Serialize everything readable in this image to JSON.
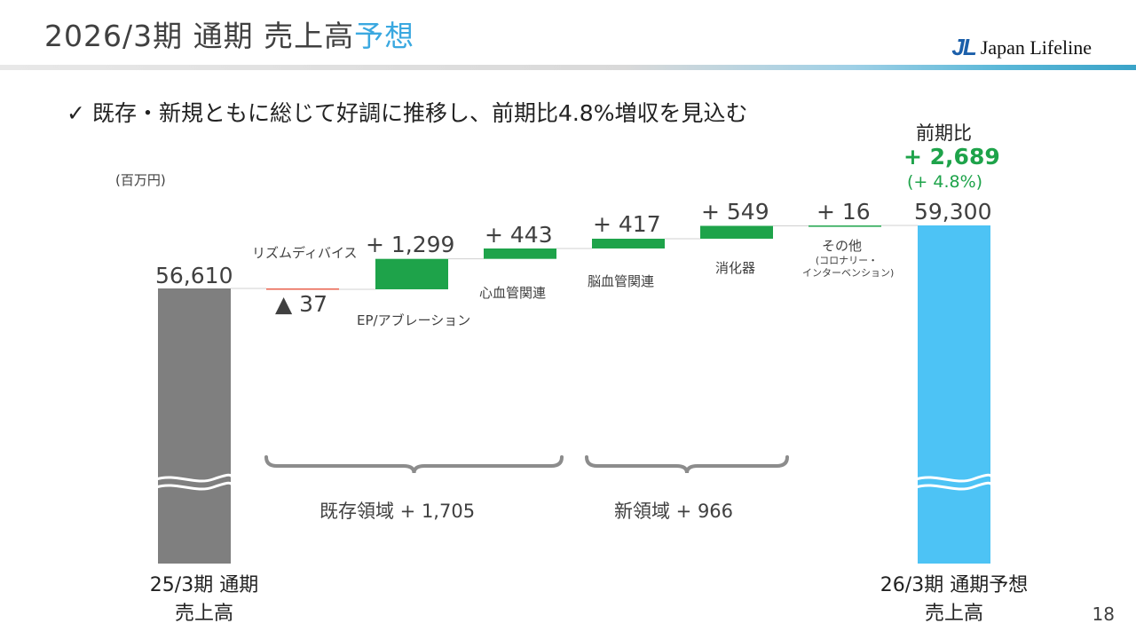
{
  "header": {
    "title_main": "2026/3期 通期 売上高",
    "title_accent": "予想",
    "logo_mark": "JL",
    "logo_text": "Japan Lifeline"
  },
  "headline": {
    "check": "✓",
    "text": "既存・新規ともに総じて好調に推移し、前期比4.8%増収を見込む"
  },
  "unit_label": "(百万円)",
  "yoy": {
    "heading": "前期比",
    "value": "+ 2,689",
    "pct": "(+ 4.8%)"
  },
  "chart_data": {
    "type": "bar",
    "subtype": "waterfall",
    "unit": "百万円",
    "start": {
      "value": 56610,
      "value_label": "56,610",
      "label_line1": "25/3期 通期",
      "label_line2": "売上高",
      "color": "#7f7f7f"
    },
    "end": {
      "value": 59300,
      "value_label": "59,300",
      "label_line1": "26/3期 通期予想",
      "label_line2": "売上高",
      "color": "#4dc3f5"
    },
    "steps": [
      {
        "category": "リズムディバイス",
        "value": -37,
        "display": "▲ 37",
        "color": "#e8604c"
      },
      {
        "category": "EP/アブレーション",
        "value": 1299,
        "display": "+ 1,299",
        "color": "#1ea34a"
      },
      {
        "category": "心血管関連",
        "value": 443,
        "display": "+ 443",
        "color": "#1ea34a"
      },
      {
        "category": "脳血管関連",
        "value": 417,
        "display": "+ 417",
        "color": "#1ea34a"
      },
      {
        "category": "消化器",
        "value": 549,
        "display": "+ 549",
        "color": "#1ea34a"
      },
      {
        "category": "その他",
        "sub1": "(コロナリー・",
        "sub2": "インターベンション)",
        "value": 16,
        "display": "+ 16",
        "color": "#1ea34a"
      }
    ],
    "groups": [
      {
        "label": "既存領域 + 1,705",
        "value": 1705
      },
      {
        "label": "新領域 + 966",
        "value": 966
      }
    ],
    "axis_break": true
  },
  "page_number": "18"
}
